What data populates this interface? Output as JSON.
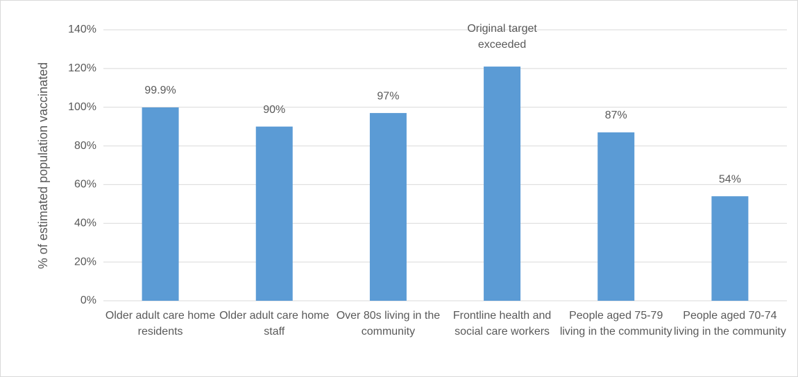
{
  "chart_data": {
    "type": "bar",
    "y_label": "% of estimated population vaccinated",
    "categories": [
      "Older adult care home residents",
      "Older adult care home staff",
      "Over 80s living in the community",
      "Frontline health and social care workers",
      "People aged 75-79 living in the community",
      "People aged 70-74 living in the community"
    ],
    "values": [
      99.9,
      90,
      97,
      121,
      87,
      54
    ],
    "value_labels": [
      "99.9%",
      "90%",
      "97%",
      null,
      "87%",
      "54%"
    ],
    "annotation": "Original target exceeded",
    "color": "#5b9bd5",
    "ylim": [
      0,
      140
    ],
    "yticks": [
      {
        "value": 0,
        "label": "0%"
      },
      {
        "value": 20,
        "label": "20%"
      },
      {
        "value": 40,
        "label": "40%"
      },
      {
        "value": 60,
        "label": "60%"
      },
      {
        "value": 80,
        "label": "80%"
      },
      {
        "value": 100,
        "label": "100%"
      },
      {
        "value": 120,
        "label": "120%"
      },
      {
        "value": 140,
        "label": "140%"
      }
    ],
    "grid": true
  }
}
